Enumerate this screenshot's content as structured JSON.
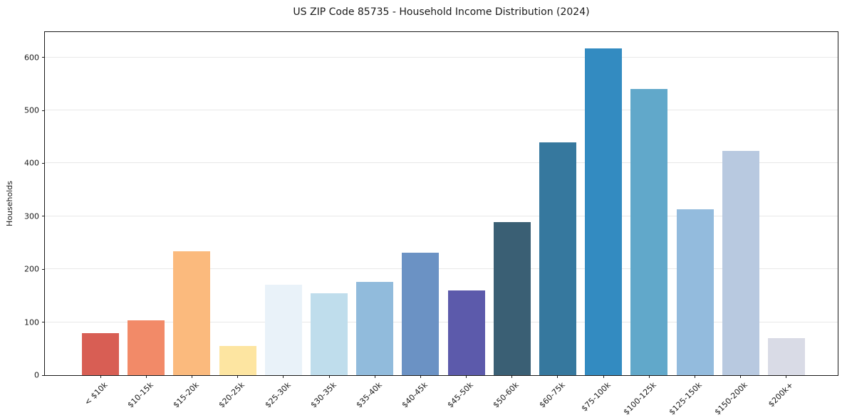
{
  "chart_data": {
    "type": "bar",
    "title": "US ZIP Code 85735 - Household Income Distribution (2024)",
    "xlabel": "",
    "ylabel": "Households",
    "categories": [
      "< $10k",
      "$10-15k",
      "$15-20k",
      "$20-25k",
      "$25-30k",
      "$30-35k",
      "$35-40k",
      "$40-45k",
      "$45-50k",
      "$50-60k",
      "$60-75k",
      "$75-100k",
      "$100-125k",
      "$125-150k",
      "$150-200k",
      "$200k+"
    ],
    "values": [
      79,
      103,
      234,
      55,
      171,
      154,
      176,
      231,
      160,
      289,
      440,
      617,
      540,
      313,
      423,
      70
    ],
    "bar_colors": [
      "#d85e54",
      "#f28a68",
      "#fbba7d",
      "#fde5a1",
      "#e9f2f9",
      "#bfddec",
      "#91bbdc",
      "#6b92c4",
      "#5c5aab",
      "#3a5f74",
      "#36789e",
      "#338bc1",
      "#61a8ca",
      "#93bbdd",
      "#b8c9e0",
      "#d9dbe6"
    ],
    "ylim": [
      0,
      648
    ],
    "yticks": [
      0,
      100,
      200,
      300,
      400,
      500,
      600
    ],
    "grid": "horizontal",
    "grid_color": "#e8e8e8",
    "axis_color": "#1a1a1a",
    "background": "#ffffff",
    "legend": "none"
  }
}
